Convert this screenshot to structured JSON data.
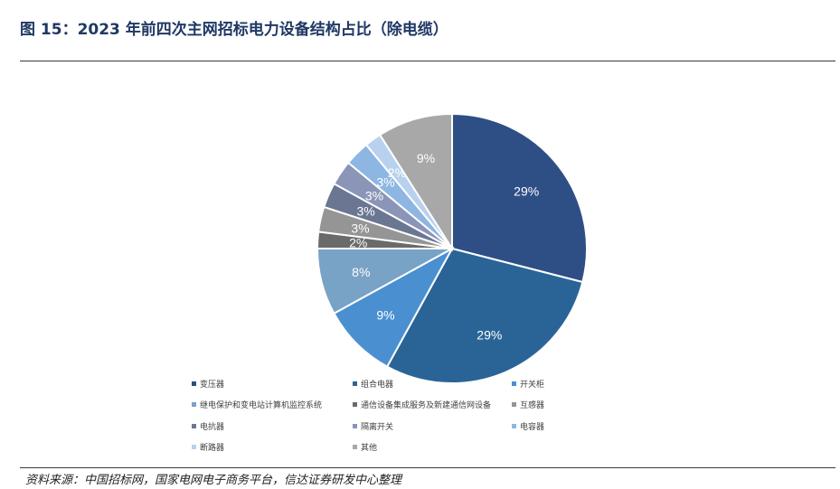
{
  "figure": {
    "title": "图 15：2023 年前四次主网招标电力设备结构占比（除电缆）",
    "source": "资料来源：中国招标网，国家电网电子商务平台，信达证券研发中心整理"
  },
  "chart_data": {
    "type": "pie",
    "title": "",
    "start_angle_deg": 0,
    "direction": "clockwise",
    "legend_position": "bottom",
    "slices": [
      {
        "name": "变压器",
        "value": 29,
        "label": "29%",
        "color": "#2e4e86"
      },
      {
        "name": "组合电器",
        "value": 29,
        "label": "29%",
        "color": "#2a6497"
      },
      {
        "name": "开关柜",
        "value": 9,
        "label": "9%",
        "color": "#4a90d0"
      },
      {
        "name": "继电保护和变电站计算机监控系统",
        "value": 8,
        "label": "8%",
        "color": "#78a2c6"
      },
      {
        "name": "通信设备集成服务及新建通信网设备",
        "value": 2,
        "label": "2%",
        "color": "#6a6a6a"
      },
      {
        "name": "互感器",
        "value": 3,
        "label": "3%",
        "color": "#959595"
      },
      {
        "name": "电抗器",
        "value": 3,
        "label": "3%",
        "color": "#6b7693"
      },
      {
        "name": "隔离开关",
        "value": 3,
        "label": "3%",
        "color": "#8a95b8"
      },
      {
        "name": "电容器",
        "value": 3,
        "label": "3%",
        "color": "#8eb6e2"
      },
      {
        "name": "断路器",
        "value": 2,
        "label": "2%",
        "color": "#b8d1ee"
      },
      {
        "name": "其他",
        "value": 9,
        "label": "9%",
        "color": "#a8a8a8"
      }
    ]
  }
}
